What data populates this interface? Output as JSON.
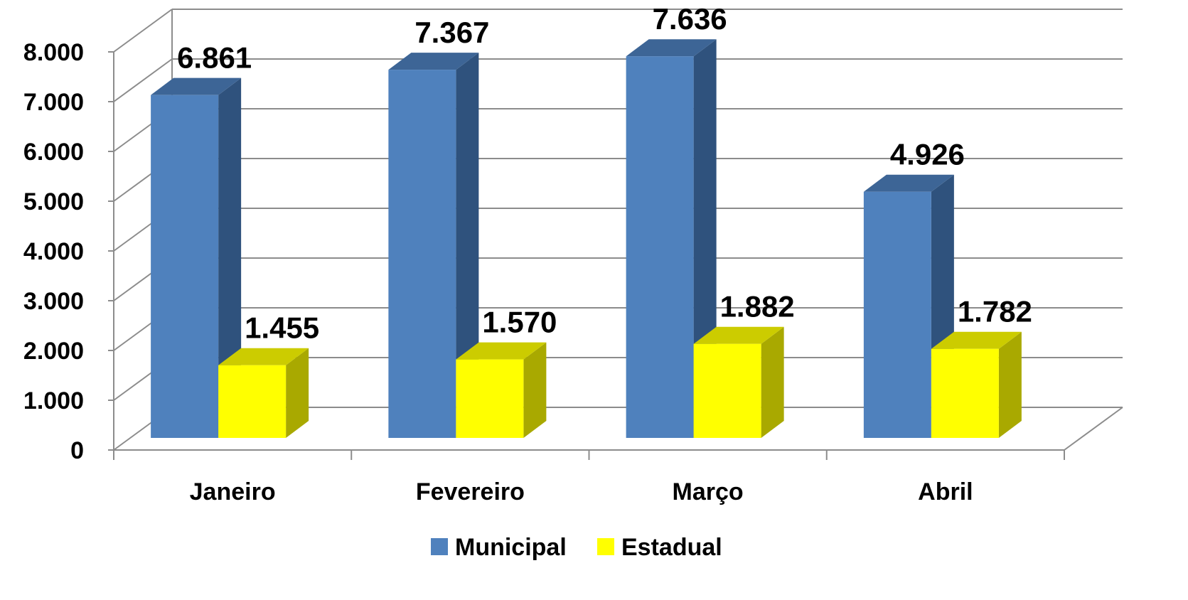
{
  "chart_data": {
    "type": "bar",
    "style": "3d-clustered-column",
    "categories": [
      "Janeiro",
      "Fevereiro",
      "Março",
      "Abril"
    ],
    "series": [
      {
        "name": "Municipal",
        "values": [
          6861,
          7367,
          7636,
          4926
        ],
        "labels": [
          "6.861",
          "7.367",
          "7.636",
          "4.926"
        ],
        "color": "#4F81BD",
        "side_color": "#2F527D",
        "top_color": "#3D6596"
      },
      {
        "name": "Estadual",
        "values": [
          1455,
          1570,
          1882,
          1782
        ],
        "labels": [
          "1.455",
          "1.570",
          "1.882",
          "1.782"
        ],
        "color": "#FFFF00",
        "side_color": "#A9A900",
        "top_color": "#CCCC00"
      }
    ],
    "ylim": [
      0,
      8000
    ],
    "yticks": [
      0,
      1000,
      2000,
      3000,
      4000,
      5000,
      6000,
      7000,
      8000
    ],
    "ytick_labels": [
      "0",
      "1.000",
      "2.000",
      "3.000",
      "4.000",
      "5.000",
      "6.000",
      "7.000",
      "8.000"
    ],
    "grid": true,
    "legend_position": "bottom",
    "title": "",
    "xlabel": "",
    "ylabel": ""
  }
}
